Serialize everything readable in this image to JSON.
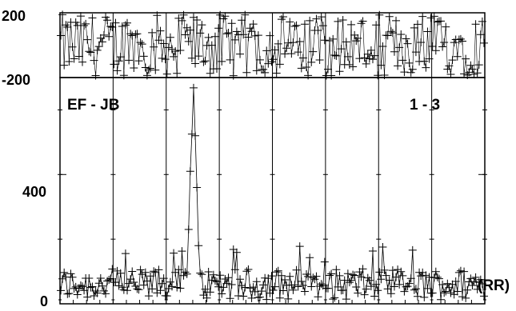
{
  "chart_data": {
    "type": "scatter",
    "baseline": "EF - JB",
    "channels": "1 - 3",
    "polarization_label": "(RR)",
    "phase_panel": {
      "ylim": [
        -200,
        200
      ],
      "tick_labels": [
        "200",
        "-200"
      ]
    },
    "amplitude_panel": {
      "ylim": [
        0,
        700
      ],
      "tick_labels": [
        "400",
        "0"
      ]
    },
    "subbands": 8,
    "x_range": [
      0,
      256
    ],
    "series": [
      {
        "peak": {
          "x": 80,
          "values": [
            92,
            230,
            410,
            525,
            668,
            520,
            360,
            180,
            95
          ]
        },
        "noise_floor": 60,
        "noise_max": 120
      }
    ]
  }
}
